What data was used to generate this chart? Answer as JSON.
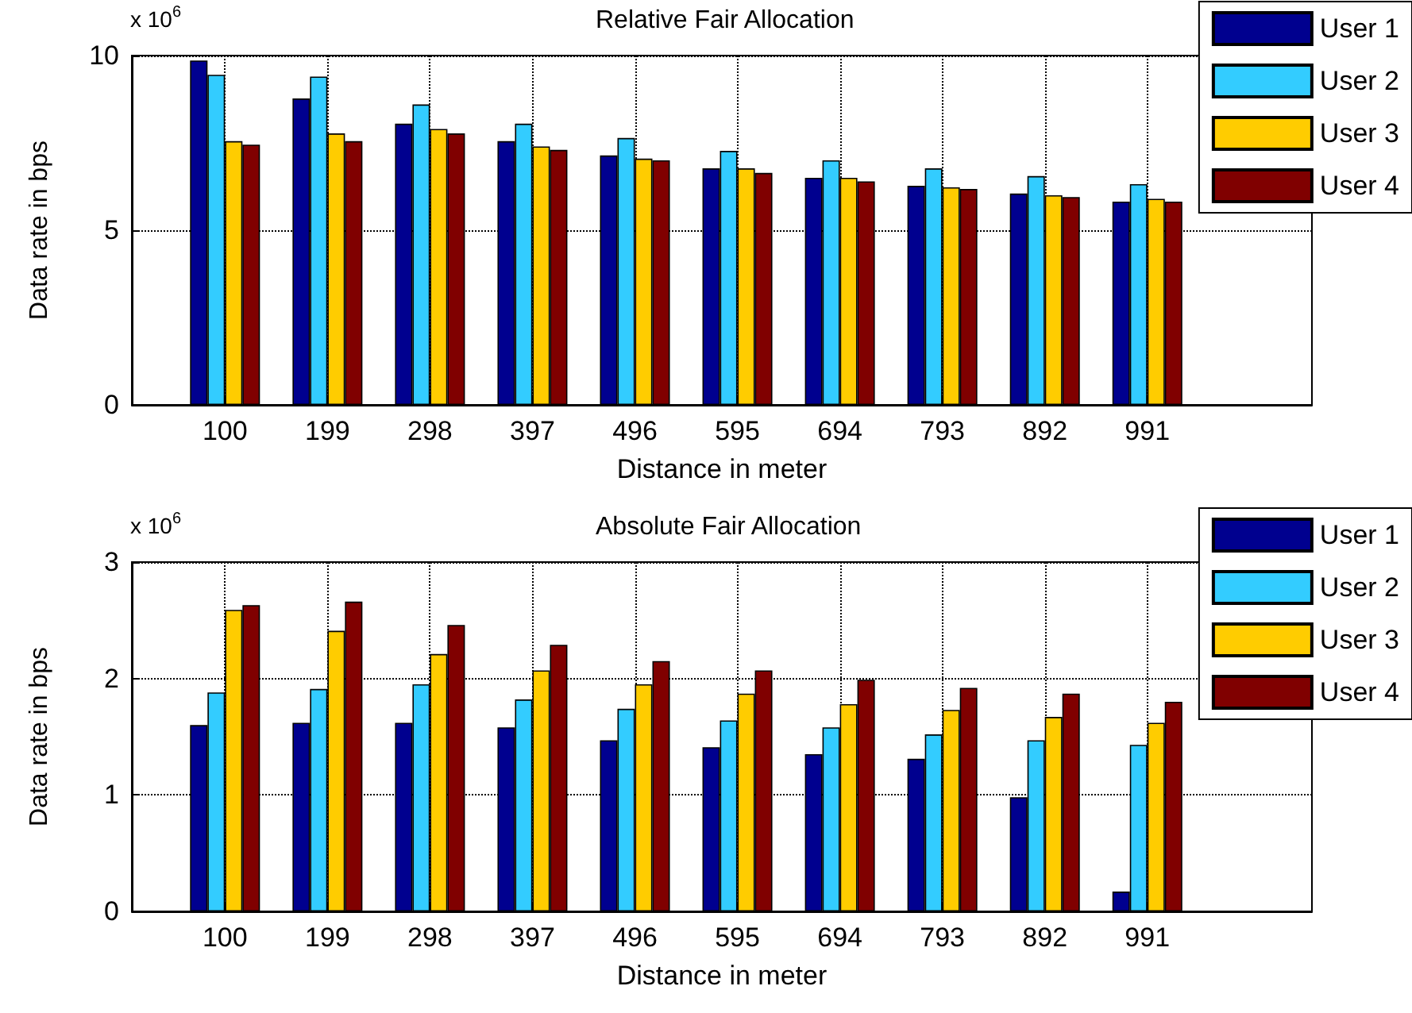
{
  "chart_data": [
    {
      "type": "bar",
      "title": "Relative Fair Allocation",
      "xlabel": "Distance in meter",
      "ylabel": "Data rate in bps",
      "annotations": [
        "x 10$^{6}$"
      ],
      "x": [
        100,
        199,
        298,
        397,
        496,
        595,
        694,
        793,
        892,
        991
      ],
      "xlim": [
        10,
        1150
      ],
      "xticks": [
        100,
        199,
        298,
        397,
        496,
        595,
        694,
        793,
        892,
        991
      ],
      "ylim": [
        0,
        10
      ],
      "yticks": [
        0,
        5,
        10
      ],
      "grid": true,
      "legend": "top right",
      "series": [
        {
          "name": "User 1",
          "color": "#00008f",
          "values": [
            9.86,
            8.77,
            8.05,
            7.55,
            7.14,
            6.77,
            6.5,
            6.27,
            6.05,
            5.82
          ]
        },
        {
          "name": "User 2",
          "color": "#33ccff",
          "values": [
            9.45,
            9.4,
            8.6,
            8.05,
            7.64,
            7.27,
            7.0,
            6.77,
            6.55,
            6.32
          ]
        },
        {
          "name": "User 3",
          "color": "#ffcc00",
          "values": [
            7.55,
            7.77,
            7.9,
            7.4,
            7.05,
            6.77,
            6.5,
            6.23,
            6.0,
            5.9
          ]
        },
        {
          "name": "User 4",
          "color": "#800000",
          "values": [
            7.45,
            7.55,
            7.77,
            7.3,
            7.0,
            6.64,
            6.4,
            6.18,
            5.95,
            5.82
          ]
        }
      ]
    },
    {
      "type": "bar",
      "title": "Absolute Fair Allocation",
      "xlabel": "Distance in meter",
      "ylabel": "Data rate in bps",
      "annotations": [
        "x 10$^{6}$"
      ],
      "x": [
        100,
        199,
        298,
        397,
        496,
        595,
        694,
        793,
        892,
        991
      ],
      "xlim": [
        10,
        1150
      ],
      "xticks": [
        100,
        199,
        298,
        397,
        496,
        595,
        694,
        793,
        892,
        991
      ],
      "ylim": [
        0,
        3
      ],
      "yticks": [
        0,
        1,
        2,
        3
      ],
      "grid": true,
      "legend": "top right",
      "series": [
        {
          "name": "User 1",
          "color": "#00008f",
          "values": [
            1.6,
            1.62,
            1.62,
            1.58,
            1.47,
            1.41,
            1.35,
            1.31,
            0.98,
            0.17
          ]
        },
        {
          "name": "User 2",
          "color": "#33ccff",
          "values": [
            1.88,
            1.91,
            1.95,
            1.82,
            1.74,
            1.64,
            1.58,
            1.52,
            1.47,
            1.43
          ]
        },
        {
          "name": "User 3",
          "color": "#ffcc00",
          "values": [
            2.59,
            2.41,
            2.21,
            2.07,
            1.95,
            1.87,
            1.78,
            1.73,
            1.67,
            1.62
          ]
        },
        {
          "name": "User 4",
          "color": "#800000",
          "values": [
            2.63,
            2.66,
            2.46,
            2.29,
            2.15,
            2.07,
            1.99,
            1.92,
            1.87,
            1.8
          ]
        }
      ]
    }
  ]
}
